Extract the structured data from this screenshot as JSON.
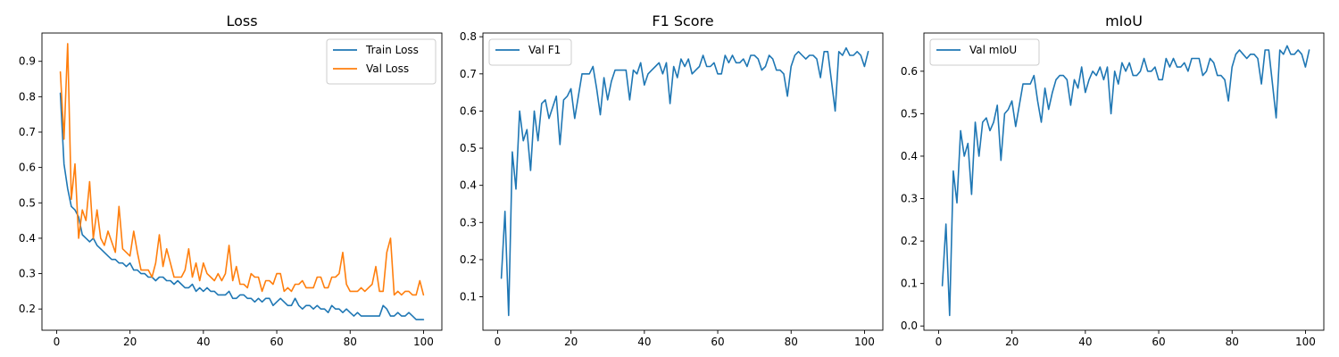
{
  "chart_data": [
    {
      "type": "line",
      "title": "Loss",
      "xlabel": "",
      "ylabel": "",
      "xlim": [
        -4,
        105
      ],
      "ylim": [
        0.14,
        0.98
      ],
      "xticks": [
        0,
        20,
        40,
        60,
        80,
        100
      ],
      "yticks": [
        0.2,
        0.3,
        0.4,
        0.5,
        0.6,
        0.7,
        0.8,
        0.9
      ],
      "grid": false,
      "legend": "top-right",
      "x_start": 1,
      "series": [
        {
          "name": "Train Loss",
          "color": "#1f77b4",
          "values": [
            0.81,
            0.61,
            0.54,
            0.49,
            0.48,
            0.46,
            0.41,
            0.4,
            0.39,
            0.4,
            0.38,
            0.37,
            0.36,
            0.35,
            0.34,
            0.34,
            0.33,
            0.33,
            0.32,
            0.33,
            0.31,
            0.31,
            0.3,
            0.3,
            0.29,
            0.29,
            0.28,
            0.29,
            0.29,
            0.28,
            0.28,
            0.27,
            0.28,
            0.27,
            0.26,
            0.26,
            0.27,
            0.25,
            0.26,
            0.25,
            0.26,
            0.25,
            0.25,
            0.24,
            0.24,
            0.24,
            0.25,
            0.23,
            0.23,
            0.24,
            0.24,
            0.23,
            0.23,
            0.22,
            0.23,
            0.22,
            0.23,
            0.23,
            0.21,
            0.22,
            0.23,
            0.22,
            0.21,
            0.21,
            0.23,
            0.21,
            0.2,
            0.21,
            0.21,
            0.2,
            0.21,
            0.2,
            0.2,
            0.19,
            0.21,
            0.2,
            0.2,
            0.19,
            0.2,
            0.19,
            0.18,
            0.19,
            0.18,
            0.18,
            0.18,
            0.18,
            0.18,
            0.18,
            0.21,
            0.2,
            0.18,
            0.18,
            0.19,
            0.18,
            0.18,
            0.19,
            0.18,
            0.17,
            0.17,
            0.17
          ]
        },
        {
          "name": "Val Loss",
          "color": "#ff7f0e",
          "values": [
            0.87,
            0.68,
            0.95,
            0.51,
            0.61,
            0.4,
            0.48,
            0.45,
            0.56,
            0.4,
            0.48,
            0.4,
            0.38,
            0.42,
            0.39,
            0.36,
            0.49,
            0.37,
            0.36,
            0.35,
            0.42,
            0.36,
            0.31,
            0.31,
            0.31,
            0.29,
            0.33,
            0.41,
            0.32,
            0.37,
            0.33,
            0.29,
            0.29,
            0.29,
            0.31,
            0.37,
            0.29,
            0.33,
            0.28,
            0.33,
            0.3,
            0.29,
            0.28,
            0.3,
            0.28,
            0.3,
            0.38,
            0.28,
            0.32,
            0.27,
            0.27,
            0.26,
            0.3,
            0.29,
            0.29,
            0.25,
            0.28,
            0.28,
            0.27,
            0.3,
            0.3,
            0.25,
            0.26,
            0.25,
            0.27,
            0.27,
            0.28,
            0.26,
            0.26,
            0.26,
            0.29,
            0.29,
            0.26,
            0.26,
            0.29,
            0.29,
            0.3,
            0.36,
            0.27,
            0.25,
            0.25,
            0.25,
            0.26,
            0.25,
            0.26,
            0.27,
            0.32,
            0.25,
            0.25,
            0.36,
            0.4,
            0.24,
            0.25,
            0.24,
            0.25,
            0.25,
            0.24,
            0.24,
            0.28,
            0.24
          ]
        }
      ]
    },
    {
      "type": "line",
      "title": "F1 Score",
      "xlabel": "",
      "ylabel": "",
      "xlim": [
        -4,
        105
      ],
      "ylim": [
        0.01,
        0.81
      ],
      "xticks": [
        0,
        20,
        40,
        60,
        80,
        100
      ],
      "yticks": [
        0.1,
        0.2,
        0.3,
        0.4,
        0.5,
        0.6,
        0.7,
        0.8
      ],
      "grid": false,
      "legend": "top-left",
      "x_start": 1,
      "series": [
        {
          "name": "Val F1",
          "color": "#1f77b4",
          "values": [
            0.15,
            0.33,
            0.05,
            0.49,
            0.39,
            0.6,
            0.52,
            0.55,
            0.44,
            0.6,
            0.52,
            0.62,
            0.63,
            0.58,
            0.61,
            0.64,
            0.51,
            0.63,
            0.64,
            0.66,
            0.58,
            0.64,
            0.7,
            0.7,
            0.7,
            0.72,
            0.66,
            0.59,
            0.69,
            0.63,
            0.68,
            0.71,
            0.71,
            0.71,
            0.71,
            0.63,
            0.71,
            0.7,
            0.73,
            0.67,
            0.7,
            0.71,
            0.72,
            0.73,
            0.7,
            0.73,
            0.62,
            0.72,
            0.69,
            0.74,
            0.72,
            0.74,
            0.7,
            0.71,
            0.72,
            0.75,
            0.72,
            0.72,
            0.73,
            0.7,
            0.7,
            0.75,
            0.73,
            0.75,
            0.73,
            0.73,
            0.74,
            0.72,
            0.75,
            0.75,
            0.74,
            0.71,
            0.72,
            0.75,
            0.74,
            0.71,
            0.71,
            0.7,
            0.64,
            0.72,
            0.75,
            0.76,
            0.75,
            0.74,
            0.75,
            0.75,
            0.74,
            0.69,
            0.76,
            0.76,
            0.68,
            0.6,
            0.76,
            0.75,
            0.77,
            0.75,
            0.75,
            0.76,
            0.75,
            0.72,
            0.76
          ]
        }
      ]
    },
    {
      "type": "line",
      "title": "mIoU",
      "xlabel": "",
      "ylabel": "",
      "xlim": [
        -4,
        105
      ],
      "ylim": [
        -0.01,
        0.69
      ],
      "xticks": [
        0,
        20,
        40,
        60,
        80,
        100
      ],
      "yticks": [
        0.0,
        0.1,
        0.2,
        0.3,
        0.4,
        0.5,
        0.6
      ],
      "grid": false,
      "legend": "top-left",
      "x_start": 1,
      "series": [
        {
          "name": "Val mIoU",
          "color": "#1f77b4",
          "values": [
            0.095,
            0.24,
            0.025,
            0.365,
            0.29,
            0.46,
            0.4,
            0.43,
            0.31,
            0.48,
            0.4,
            0.48,
            0.49,
            0.46,
            0.48,
            0.52,
            0.39,
            0.5,
            0.51,
            0.53,
            0.47,
            0.52,
            0.57,
            0.57,
            0.57,
            0.59,
            0.53,
            0.48,
            0.56,
            0.51,
            0.55,
            0.58,
            0.59,
            0.59,
            0.58,
            0.52,
            0.58,
            0.56,
            0.61,
            0.55,
            0.58,
            0.6,
            0.59,
            0.61,
            0.58,
            0.61,
            0.5,
            0.6,
            0.57,
            0.62,
            0.6,
            0.62,
            0.59,
            0.59,
            0.6,
            0.63,
            0.6,
            0.6,
            0.61,
            0.58,
            0.58,
            0.63,
            0.61,
            0.63,
            0.61,
            0.61,
            0.62,
            0.6,
            0.63,
            0.63,
            0.63,
            0.59,
            0.6,
            0.63,
            0.62,
            0.59,
            0.59,
            0.58,
            0.53,
            0.61,
            0.64,
            0.65,
            0.64,
            0.63,
            0.64,
            0.64,
            0.63,
            0.57,
            0.65,
            0.65,
            0.57,
            0.49,
            0.65,
            0.64,
            0.66,
            0.64,
            0.64,
            0.65,
            0.64,
            0.61,
            0.65
          ]
        }
      ]
    }
  ]
}
